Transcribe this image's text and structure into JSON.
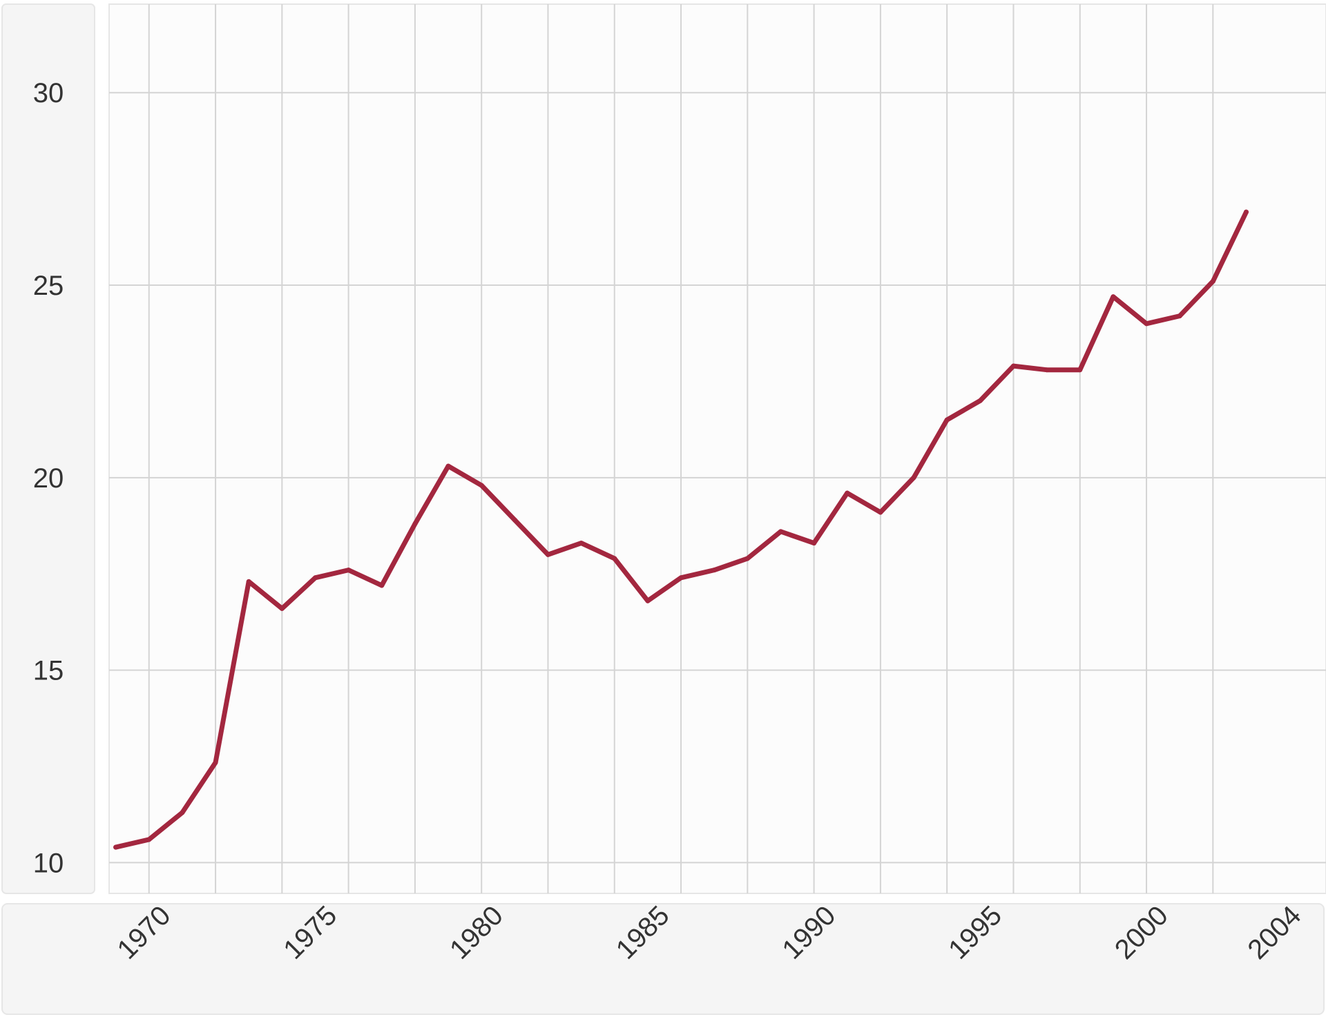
{
  "chart_data": {
    "type": "line",
    "title": "",
    "xlabel": "",
    "ylabel": "",
    "x": [
      1969,
      1970,
      1971,
      1972,
      1973,
      1974,
      1975,
      1976,
      1977,
      1978,
      1979,
      1980,
      1981,
      1982,
      1983,
      1984,
      1985,
      1986,
      1987,
      1988,
      1989,
      1990,
      1991,
      1992,
      1993,
      1994,
      1995,
      1996,
      1997,
      1998,
      1999,
      2000,
      2001,
      2002,
      2003
    ],
    "series": [
      {
        "color": "#a3273f",
        "values": [
          10.4,
          10.6,
          11.3,
          12.6,
          17.3,
          16.6,
          17.4,
          17.6,
          17.2,
          18.8,
          20.3,
          19.8,
          18.9,
          18.0,
          18.3,
          17.9,
          16.8,
          17.4,
          17.6,
          17.9,
          18.6,
          18.3,
          19.6,
          19.1,
          20.0,
          21.5,
          22.0,
          22.9,
          22.8,
          22.8,
          24.7,
          24.0,
          24.2,
          25.1,
          26.9
        ]
      }
    ],
    "x_ticks": [
      {
        "value": 1970,
        "label": "1970"
      },
      {
        "value": 1975,
        "label": "1975"
      },
      {
        "value": 1980,
        "label": "1980"
      },
      {
        "value": 1985,
        "label": "1985"
      },
      {
        "value": 1990,
        "label": "1990"
      },
      {
        "value": 1995,
        "label": "1995"
      },
      {
        "value": 2000,
        "label": "2000"
      },
      {
        "value": 2004,
        "label": "2004"
      }
    ],
    "y_ticks": [
      {
        "value": 10,
        "label": "10"
      },
      {
        "value": 15,
        "label": "15"
      },
      {
        "value": 20,
        "label": "20"
      },
      {
        "value": 25,
        "label": "25"
      },
      {
        "value": 30,
        "label": "30"
      }
    ],
    "xlim": [
      1968.8,
      2005.4
    ],
    "ylim": [
      9.2,
      32.3
    ],
    "grid": true,
    "colors": {
      "plot_background": "#fcfcfc",
      "gridline": "#d4d4d4",
      "panel_background": "#f5f5f5",
      "panel_border": "#e6e6e6",
      "tick_text": "#333333"
    }
  }
}
